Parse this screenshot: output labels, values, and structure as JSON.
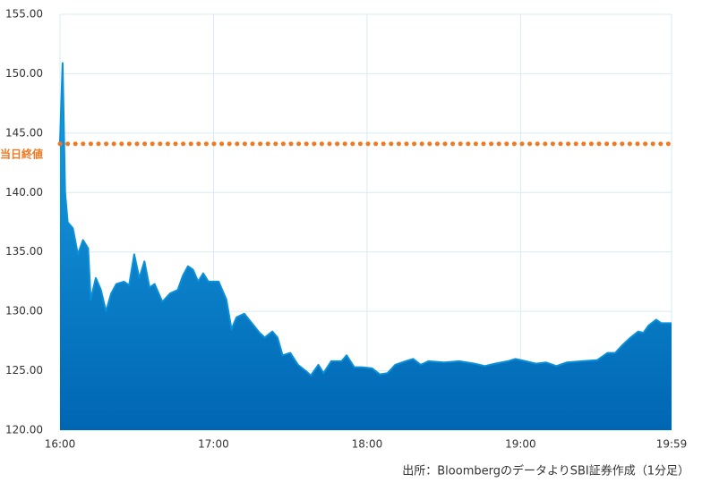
{
  "chart_data": {
    "type": "area",
    "x": [
      "16:00",
      "16:01",
      "16:02",
      "16:03",
      "16:05",
      "16:07",
      "16:09",
      "16:11",
      "16:12",
      "16:14",
      "16:16",
      "16:18",
      "16:20",
      "16:22",
      "16:25",
      "16:27",
      "16:29",
      "16:31",
      "16:33",
      "16:35",
      "16:37",
      "16:40",
      "16:43",
      "16:46",
      "16:48",
      "16:50",
      "16:52",
      "16:54",
      "16:56",
      "16:58",
      "17:02",
      "17:05",
      "17:07",
      "17:09",
      "17:12",
      "17:15",
      "17:18",
      "17:20",
      "17:23",
      "17:25",
      "17:27",
      "17:30",
      "17:33",
      "17:36",
      "17:38",
      "17:41",
      "17:43",
      "17:46",
      "17:50",
      "17:52",
      "17:55",
      "17:58",
      "18:02",
      "18:05",
      "18:08",
      "18:11",
      "18:15",
      "18:18",
      "18:21",
      "18:24",
      "18:30",
      "18:36",
      "18:42",
      "18:46",
      "18:50",
      "18:55",
      "18:58",
      "19:02",
      "19:06",
      "19:10",
      "19:14",
      "19:18",
      "19:24",
      "19:30",
      "19:34",
      "19:37",
      "19:40",
      "19:43",
      "19:46",
      "19:48",
      "19:50",
      "19:53",
      "19:55",
      "19:59"
    ],
    "series": [
      {
        "color": "#0a8fd8",
        "values": [
          144.2,
          150.9,
          140,
          137.5,
          137,
          134.8,
          136,
          135.3,
          131,
          132.8,
          131.8,
          130,
          131.5,
          132.3,
          132.5,
          132.2,
          134.8,
          132.8,
          134.2,
          132,
          132.3,
          130.8,
          131.5,
          131.8,
          133,
          133.8,
          133.5,
          132.5,
          133.2,
          132.5,
          132.5,
          131,
          128.5,
          129.5,
          129.8,
          129,
          128.2,
          127.8,
          128.3,
          127.8,
          126.3,
          126.5,
          125.5,
          125,
          124.6,
          125.5,
          124.8,
          125.8,
          125.8,
          126.3,
          125.3,
          125.3,
          125.2,
          124.7,
          124.8,
          125.5,
          125.8,
          126,
          125.5,
          125.8,
          125.7,
          125.8,
          125.6,
          125.4,
          125.6,
          125.8,
          126,
          125.8,
          125.6,
          125.7,
          125.4,
          125.7,
          125.8,
          125.9,
          126.5,
          126.5,
          127.2,
          127.8,
          128.3,
          128.2,
          128.8,
          129.3,
          129,
          129
        ]
      }
    ],
    "xlim": [
      "16:00",
      "19:59"
    ],
    "xticks": [
      "16:00",
      "17:00",
      "18:00",
      "19:00",
      "19:59"
    ],
    "ylim": [
      120,
      155
    ],
    "yticks": [
      {
        "value": 120,
        "label": "120.00"
      },
      {
        "value": 125,
        "label": "125.00"
      },
      {
        "value": 130,
        "label": "130.00"
      },
      {
        "value": 135,
        "label": "135.00"
      },
      {
        "value": 140,
        "label": "140.00"
      },
      {
        "value": 145,
        "label": "145.00"
      },
      {
        "value": 150,
        "label": "150.00"
      },
      {
        "value": 155,
        "label": "155.00"
      }
    ],
    "grid": true,
    "reference_line": {
      "label": "当日終値",
      "value": 144.1,
      "color": "#f07820"
    },
    "source": "出所：BloombergのデータよりSBI証券作成（1分足）"
  }
}
